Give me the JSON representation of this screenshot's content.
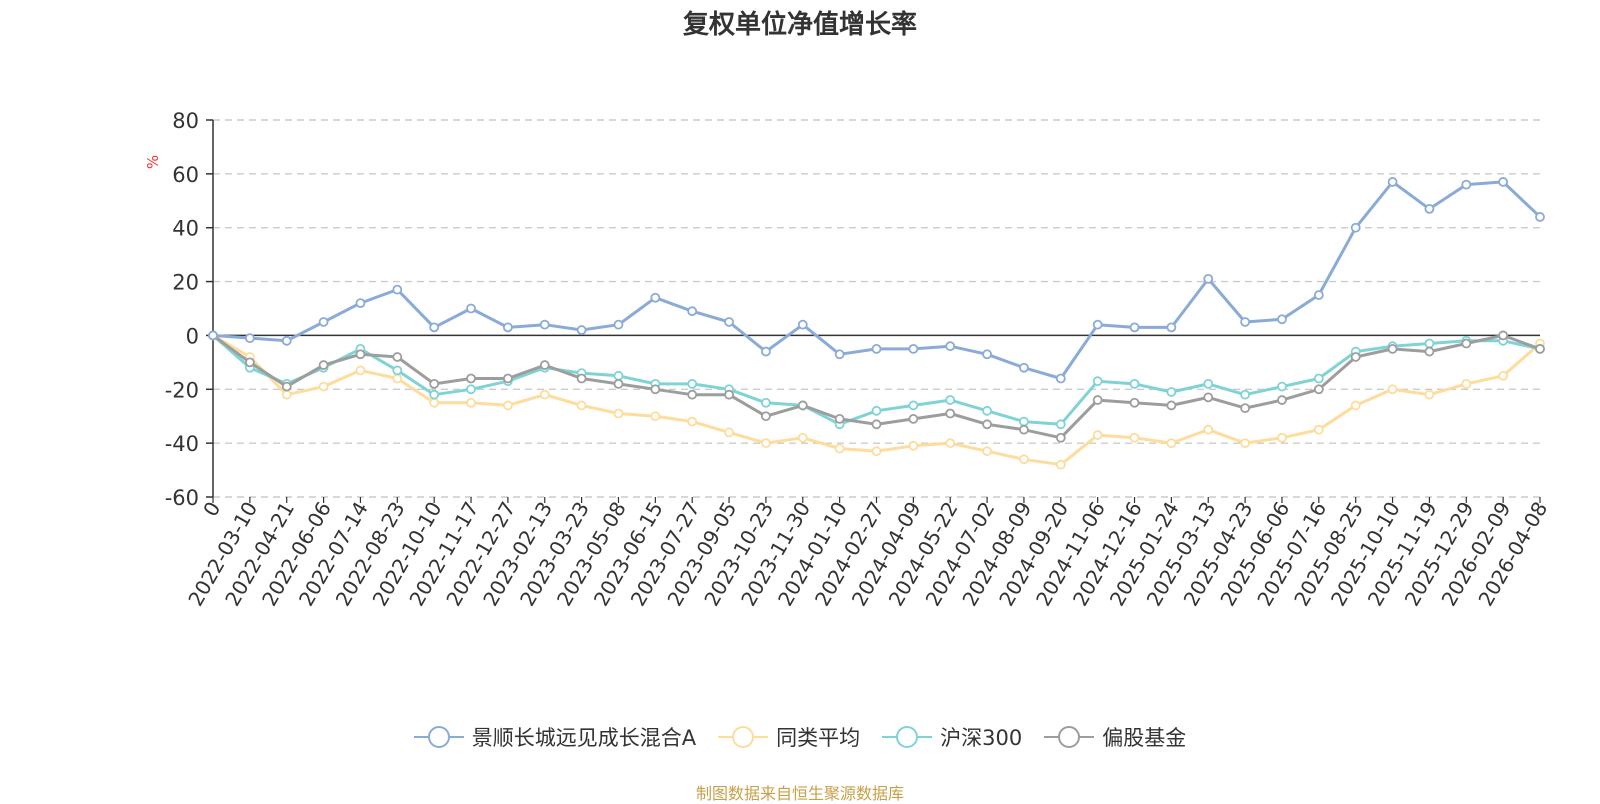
{
  "chart_data": {
    "type": "line",
    "title": "复权单位净值增长率",
    "y_unit": "%",
    "ylim": [
      -60,
      80
    ],
    "y_ticks": [
      -60,
      -40,
      -20,
      0,
      20,
      40,
      60,
      80
    ],
    "grid": "horizontal dashed",
    "legend_position": "bottom",
    "x_tick_labels": [
      "0",
      "2022-03-10",
      "2022-04-21",
      "2022-06-06",
      "2022-07-14",
      "2022-08-23",
      "2022-10-10",
      "2022-11-17",
      "2022-12-27",
      "2023-02-13",
      "2023-03-23",
      "2023-05-08",
      "2023-06-15",
      "2023-07-27",
      "2023-09-05",
      "2023-10-23",
      "2023-11-30",
      "2024-01-10",
      "2024-02-27",
      "2024-04-09",
      "2024-05-22",
      "2024-07-02",
      "2024-08-09",
      "2024-09-20",
      "2024-11-06",
      "2024-12-16",
      "2025-01-24",
      "2025-03-13",
      "2025-04-23",
      "2025-06-06",
      "2025-07-16",
      "2025-08-25",
      "2025-10-10",
      "2025-11-19",
      "2025-12-29",
      "2026-02-09",
      "2026-04-08"
    ],
    "series": [
      {
        "name": "景顺长城远见成长混合A",
        "color": "#8aaad8",
        "values": [
          0,
          -1,
          -2,
          5,
          12,
          17,
          3,
          10,
          3,
          4,
          2,
          4,
          14,
          9,
          5,
          -6,
          4,
          -7,
          -5,
          -5,
          -4,
          -7,
          -12,
          -16,
          4,
          3,
          3,
          21,
          5,
          6,
          15,
          40,
          57,
          47,
          56,
          57,
          44
        ]
      },
      {
        "name": "同类平均",
        "color": "#fddc9c",
        "values": [
          0,
          -8,
          -22,
          -19,
          -13,
          -16,
          -25,
          -25,
          -26,
          -22,
          -26,
          -29,
          -30,
          -32,
          -36,
          -40,
          -38,
          -42,
          -43,
          -41,
          -40,
          -43,
          -46,
          -48,
          -37,
          -38,
          -40,
          -35,
          -40,
          -38,
          -35,
          -26,
          -20,
          -22,
          -18,
          -15,
          -3
        ]
      },
      {
        "name": "沪深300",
        "color": "#7fd3d6",
        "values": [
          0,
          -12,
          -18,
          -12,
          -5,
          -13,
          -22,
          -20,
          -17,
          -12,
          -14,
          -15,
          -18,
          -18,
          -20,
          -25,
          -26,
          -33,
          -28,
          -26,
          -24,
          -28,
          -32,
          -33,
          -17,
          -18,
          -21,
          -18,
          -22,
          -19,
          -16,
          -6,
          -4,
          -3,
          -2,
          -2,
          -5
        ]
      },
      {
        "name": "偏股基金",
        "color": "#9d9d9d",
        "values": [
          0,
          -10,
          -19,
          -11,
          -7,
          -8,
          -18,
          -16,
          -16,
          -11,
          -16,
          -18,
          -20,
          -22,
          -22,
          -30,
          -26,
          -31,
          -33,
          -31,
          -29,
          -33,
          -35,
          -38,
          -24,
          -25,
          -26,
          -23,
          -27,
          -24,
          -20,
          -8,
          -5,
          -6,
          -3,
          0,
          -5
        ]
      }
    ]
  },
  "footer": {
    "source_text": "制图数据来自恒生聚源数据库"
  }
}
